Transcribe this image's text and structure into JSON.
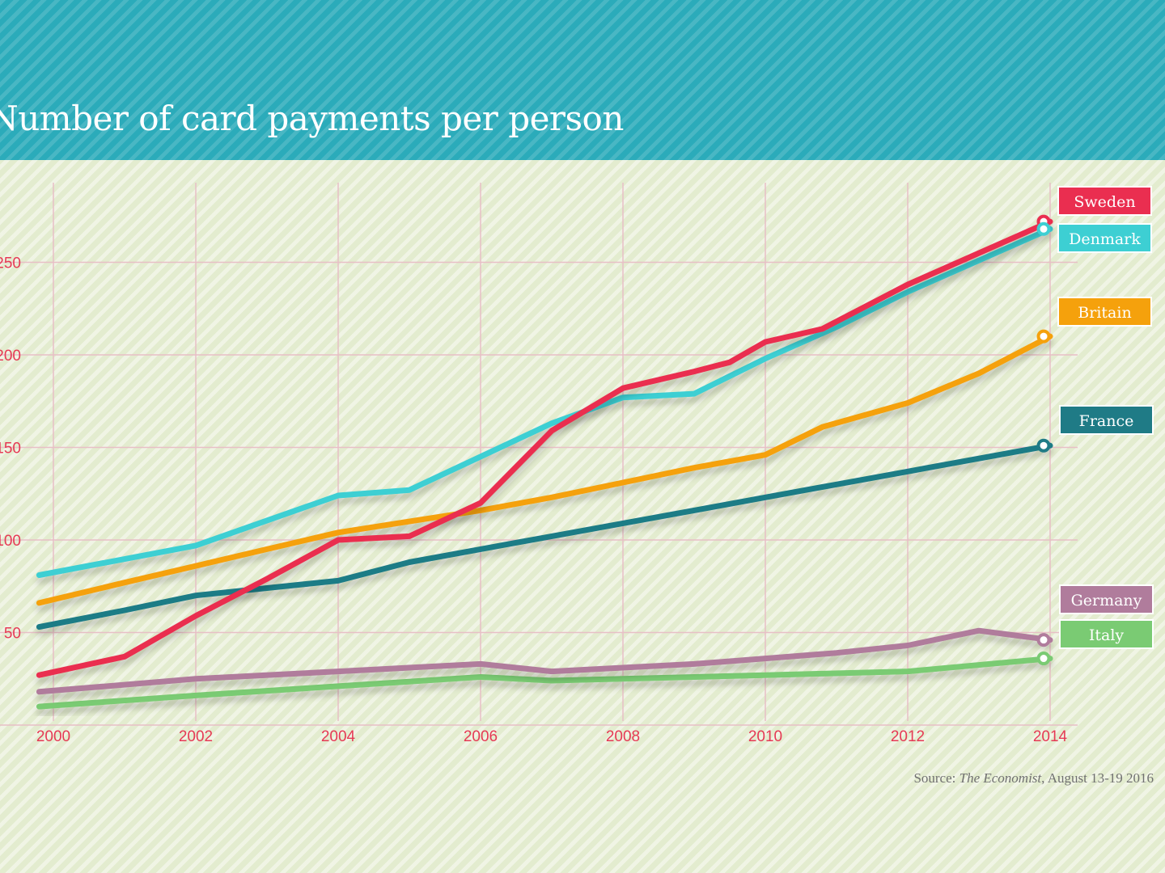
{
  "header": {
    "title": "Number of card payments per person",
    "color": "#2babba"
  },
  "source": {
    "prefix": "Source: ",
    "publication": "The Economist",
    "suffix": ", August 13-19 2016"
  },
  "chart_data": {
    "type": "line",
    "title": "Number of card payments per person",
    "xlabel": "",
    "ylabel": "",
    "xlim": [
      1999.9,
      2014.2
    ],
    "ylim": [
      0,
      400
    ],
    "x_ticks": [
      2000,
      2002,
      2004,
      2006,
      2008,
      2010,
      2012,
      2014
    ],
    "y_ticks": [
      50,
      100,
      150,
      200,
      250
    ],
    "y_tick_labels": [
      "50",
      "100",
      "150",
      "200",
      "250"
    ],
    "grid": true,
    "legend": "right-end-labels",
    "series": [
      {
        "name": "Sweden",
        "color": "#ea2e50",
        "x": [
          1999.8,
          2001,
          2002,
          2003,
          2004,
          2005,
          2006,
          2007,
          2008,
          2009,
          2009.5,
          2010,
          2010.8,
          2012,
          2014
        ],
        "y": [
          27,
          37,
          59,
          79,
          100,
          102,
          120,
          159,
          182,
          191,
          196,
          207,
          214,
          238,
          272
        ]
      },
      {
        "name": "Denmark",
        "color": "#3dcfd3",
        "x": [
          1999.8,
          2002,
          2004,
          2005,
          2006,
          2007,
          2008,
          2009,
          2010,
          2011,
          2012,
          2014
        ],
        "y": [
          81,
          97,
          124,
          127,
          145,
          163,
          177,
          179,
          198,
          215,
          234,
          268
        ]
      },
      {
        "name": "Britain",
        "color": "#f5a10c",
        "x": [
          1999.8,
          2001,
          2002,
          2003,
          2004,
          2005,
          2006,
          2007,
          2008,
          2009,
          2010,
          2010.8,
          2012,
          2013,
          2014
        ],
        "y": [
          66,
          77,
          86,
          95,
          104,
          110,
          116,
          123,
          131,
          139,
          146,
          161,
          174,
          190,
          210
        ]
      },
      {
        "name": "France",
        "color": "#1f7b86",
        "x": [
          1999.8,
          2001,
          2002,
          2003,
          2004,
          2005,
          2006,
          2007,
          2008,
          2009,
          2010,
          2011,
          2012,
          2013,
          2014
        ],
        "y": [
          53,
          62,
          70,
          74,
          78,
          88,
          95,
          102,
          109,
          116,
          123,
          130,
          137,
          144,
          151
        ]
      },
      {
        "name": "Germany",
        "color": "#b07c9c",
        "x": [
          1999.8,
          2002,
          2004,
          2006,
          2007,
          2008,
          2009,
          2010,
          2011,
          2012,
          2013,
          2014
        ],
        "y": [
          18,
          25,
          29,
          33,
          29,
          31,
          33,
          36,
          39,
          43,
          51,
          46
        ]
      },
      {
        "name": "Italy",
        "color": "#7acb73",
        "x": [
          1999.8,
          2002,
          2004,
          2006,
          2007,
          2008,
          2010,
          2012,
          2014
        ],
        "y": [
          10,
          16,
          21,
          26,
          24,
          25,
          27,
          29,
          36
        ]
      }
    ],
    "grid_color": "#e8bfc6",
    "tick_color": "#e63a55"
  }
}
